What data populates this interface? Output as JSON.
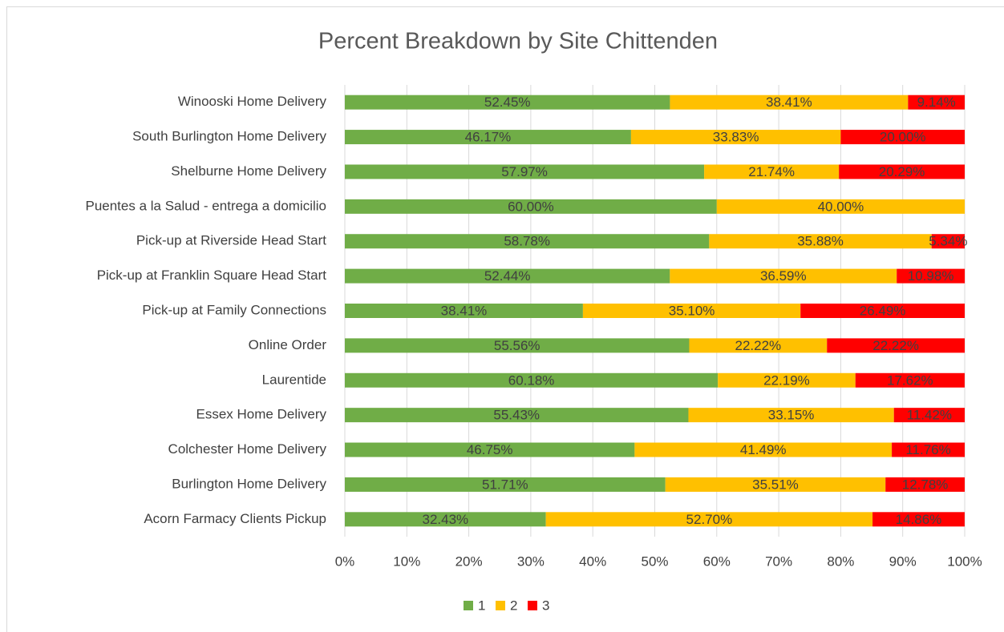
{
  "chart_data": {
    "type": "stacked_bar_horizontal",
    "title": "Percent Breakdown by Site Chittenden",
    "categories": [
      "Winooski Home Delivery",
      "South Burlington Home Delivery",
      "Shelburne Home Delivery",
      "Puentes a la Salud - entrega a domicilio",
      "Pick-up at Riverside Head Start",
      "Pick-up at Franklin Square Head Start",
      "Pick-up at Family Connections",
      "Online Order",
      "Laurentide",
      "Essex Home Delivery",
      "Colchester Home Delivery",
      "Burlington Home Delivery",
      "Acorn Farmacy Clients Pickup"
    ],
    "series": [
      {
        "name": "1",
        "color": "#70ad47",
        "values": [
          52.45,
          46.17,
          57.97,
          60.0,
          58.78,
          52.44,
          38.41,
          55.56,
          60.18,
          55.43,
          46.75,
          51.71,
          32.43
        ],
        "value_labels": [
          "52.45%",
          "46.17%",
          "57.97%",
          "60.00%",
          "58.78%",
          "52.44%",
          "38.41%",
          "55.56%",
          "60.18%",
          "55.43%",
          "46.75%",
          "51.71%",
          "32.43%"
        ]
      },
      {
        "name": "2",
        "color": "#ffc000",
        "values": [
          38.41,
          33.83,
          21.74,
          40.0,
          35.88,
          36.59,
          35.1,
          22.22,
          22.19,
          33.15,
          41.49,
          35.51,
          52.7
        ],
        "value_labels": [
          "38.41%",
          "33.83%",
          "21.74%",
          "40.00%",
          "35.88%",
          "36.59%",
          "35.10%",
          "22.22%",
          "22.19%",
          "33.15%",
          "41.49%",
          "35.51%",
          "52.70%"
        ]
      },
      {
        "name": "3",
        "color": "#ff0000",
        "values": [
          9.14,
          20.0,
          20.29,
          null,
          5.34,
          10.98,
          26.49,
          22.22,
          17.62,
          11.42,
          11.76,
          12.78,
          14.86
        ],
        "value_labels": [
          "9.14%",
          "20.00%",
          "20.29%",
          null,
          "5.34%",
          "10.98%",
          "26.49%",
          "22.22%",
          "17.62%",
          "11.42%",
          "11.76%",
          "12.78%",
          "14.86%"
        ]
      }
    ],
    "xlim": [
      0,
      100
    ],
    "xticks": [
      {
        "value": 0,
        "label": "0%"
      },
      {
        "value": 10,
        "label": "10%"
      },
      {
        "value": 20,
        "label": "20%"
      },
      {
        "value": 30,
        "label": "30%"
      },
      {
        "value": 40,
        "label": "40%"
      },
      {
        "value": 50,
        "label": "50%"
      },
      {
        "value": 60,
        "label": "60%"
      },
      {
        "value": 70,
        "label": "70%"
      },
      {
        "value": 80,
        "label": "80%"
      },
      {
        "value": 90,
        "label": "90%"
      },
      {
        "value": 100,
        "label": "100%"
      }
    ],
    "grid": true,
    "legend": "bottom"
  }
}
